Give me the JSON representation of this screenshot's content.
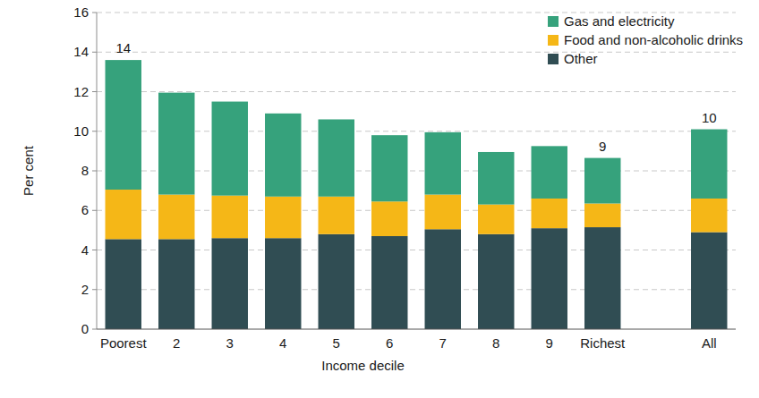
{
  "chart_data": {
    "type": "bar",
    "stacked": true,
    "grid": true,
    "legend": "top-right",
    "x_label": "Income decile",
    "y_label": "Per cent",
    "categories": [
      "Poorest",
      "2",
      "3",
      "4",
      "5",
      "6",
      "7",
      "8",
      "9",
      "Richest",
      null,
      "All"
    ],
    "series": [
      {
        "name": "Other",
        "color": "#304d53",
        "values": [
          4.55,
          4.55,
          4.6,
          4.6,
          4.8,
          4.7,
          5.05,
          4.8,
          5.1,
          5.15,
          null,
          4.9
        ]
      },
      {
        "name": "Food and non-alcoholic drinks",
        "color": "#f5b717",
        "values": [
          2.5,
          2.25,
          2.15,
          2.1,
          1.9,
          1.75,
          1.75,
          1.5,
          1.5,
          1.2,
          null,
          1.7
        ]
      },
      {
        "name": "Gas and electricity",
        "color": "#36a27c",
        "values": [
          6.55,
          5.15,
          4.75,
          4.2,
          3.9,
          3.35,
          3.15,
          2.65,
          2.65,
          2.3,
          null,
          3.5
        ]
      }
    ],
    "totals": [
      14,
      null,
      null,
      null,
      null,
      null,
      null,
      null,
      null,
      9,
      null,
      10
    ],
    "ylim": [
      0,
      16
    ],
    "yticks": [
      0,
      2,
      4,
      6,
      8,
      10,
      12,
      14,
      16
    ]
  }
}
